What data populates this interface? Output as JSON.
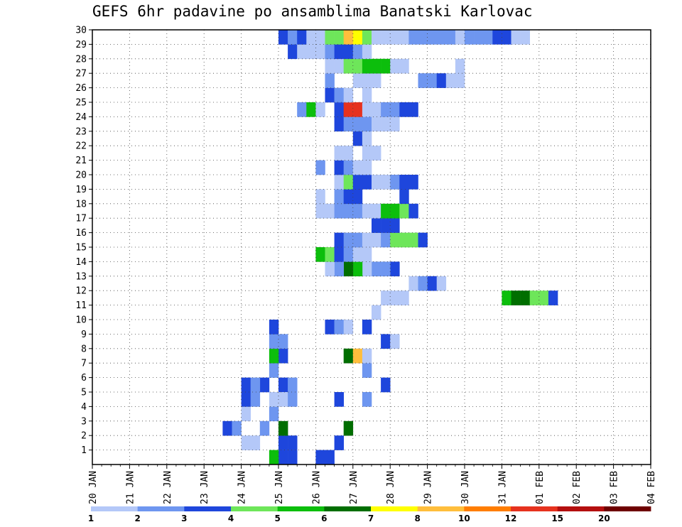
{
  "chart_data": {
    "type": "heatmap",
    "title": "GEFS 6hr padavine po ansamblima Banatski Karlovac",
    "xlabel": "",
    "ylabel": "",
    "x_tick_labels": [
      "20 JAN",
      "21 JAN",
      "22 JAN",
      "23 JAN",
      "24 JAN",
      "25 JAN",
      "26 JAN",
      "27 JAN",
      "28 JAN",
      "29 JAN",
      "30 JAN",
      "31 JAN",
      "01 FEB",
      "02 FEB",
      "03 FEB",
      "04 FEB"
    ],
    "y_tick_labels": [
      "1",
      "2",
      "3",
      "4",
      "5",
      "6",
      "7",
      "8",
      "9",
      "10",
      "11",
      "12",
      "13",
      "14",
      "15",
      "16",
      "17",
      "18",
      "19",
      "20",
      "21",
      "22",
      "23",
      "24",
      "25",
      "26",
      "27",
      "28",
      "29",
      "30"
    ],
    "time_steps_per_day": 4,
    "members_range": [
      0,
      30
    ],
    "grid": true,
    "legend_position": "bottom",
    "legend_labels": [
      "1",
      "2",
      "3",
      "4",
      "5",
      "6",
      "7",
      "8",
      "10",
      "12",
      "15",
      "20"
    ],
    "legend_colors": [
      "#b4c8f8",
      "#6e96f0",
      "#1e46dc",
      "#6ee65a",
      "#0cbe0c",
      "#006e00",
      "#ffff00",
      "#ffbe3c",
      "#ff7d00",
      "#e6321e",
      "#b40f0f",
      "#6e0000"
    ],
    "cells": [
      [
        20,
        0,
        3
      ],
      [
        20,
        1,
        3
      ],
      [
        21,
        0,
        3
      ],
      [
        19,
        0,
        5
      ],
      [
        21,
        1,
        3
      ],
      [
        20,
        2,
        6
      ],
      [
        24,
        0,
        3
      ],
      [
        25,
        0,
        3
      ],
      [
        26,
        1,
        3
      ],
      [
        19,
        3,
        2
      ],
      [
        27,
        2,
        6
      ],
      [
        31,
        5,
        3
      ],
      [
        29,
        4,
        2
      ],
      [
        26,
        4,
        3
      ],
      [
        18,
        5,
        3
      ],
      [
        20,
        5,
        3
      ],
      [
        19,
        6,
        2
      ],
      [
        29,
        6,
        2
      ],
      [
        27,
        7,
        6
      ],
      [
        28,
        7,
        8
      ],
      [
        29,
        7,
        1
      ],
      [
        31,
        8,
        3
      ],
      [
        32,
        8,
        1
      ],
      [
        20,
        7,
        3
      ],
      [
        19,
        7,
        5
      ],
      [
        20,
        8,
        2
      ],
      [
        19,
        8,
        2
      ],
      [
        19,
        9,
        3
      ],
      [
        25,
        9,
        3
      ],
      [
        26,
        9,
        2
      ],
      [
        27,
        9,
        1
      ],
      [
        29,
        9,
        3
      ],
      [
        30,
        10,
        1
      ],
      [
        31,
        11,
        1
      ],
      [
        32,
        11,
        1
      ],
      [
        33,
        11,
        1
      ],
      [
        34,
        12,
        1
      ],
      [
        35,
        12,
        2
      ],
      [
        36,
        12,
        3
      ],
      [
        37,
        12,
        1
      ],
      [
        32,
        13,
        3
      ],
      [
        31,
        13,
        2
      ],
      [
        30,
        13,
        2
      ],
      [
        29,
        13,
        1
      ],
      [
        28,
        13,
        5
      ],
      [
        27,
        13,
        6
      ],
      [
        26,
        13,
        2
      ],
      [
        25,
        13,
        1
      ],
      [
        24,
        14,
        5
      ],
      [
        25,
        14,
        4
      ],
      [
        26,
        14,
        3
      ],
      [
        27,
        14,
        2
      ],
      [
        28,
        14,
        1
      ],
      [
        29,
        14,
        1
      ],
      [
        26,
        15,
        3
      ],
      [
        27,
        15,
        2
      ],
      [
        28,
        15,
        2
      ],
      [
        29,
        15,
        1
      ],
      [
        30,
        15,
        1
      ],
      [
        31,
        15,
        2
      ],
      [
        32,
        15,
        4
      ],
      [
        33,
        15,
        4
      ],
      [
        34,
        15,
        4
      ],
      [
        35,
        15,
        3
      ],
      [
        30,
        16,
        3
      ],
      [
        31,
        16,
        3
      ],
      [
        32,
        16,
        3
      ],
      [
        24,
        17,
        1
      ],
      [
        25,
        17,
        1
      ],
      [
        26,
        17,
        2
      ],
      [
        27,
        17,
        2
      ],
      [
        28,
        17,
        2
      ],
      [
        29,
        17,
        1
      ],
      [
        30,
        17,
        1
      ],
      [
        31,
        17,
        5
      ],
      [
        32,
        17,
        5
      ],
      [
        33,
        17,
        4
      ],
      [
        34,
        17,
        3
      ],
      [
        24,
        18,
        1
      ],
      [
        26,
        18,
        2
      ],
      [
        27,
        18,
        3
      ],
      [
        28,
        18,
        3
      ],
      [
        33,
        18,
        3
      ],
      [
        26,
        19,
        1
      ],
      [
        27,
        19,
        4
      ],
      [
        28,
        19,
        3
      ],
      [
        29,
        19,
        3
      ],
      [
        30,
        19,
        1
      ],
      [
        31,
        19,
        1
      ],
      [
        32,
        19,
        2
      ],
      [
        33,
        19,
        3
      ],
      [
        34,
        19,
        3
      ],
      [
        24,
        20,
        2
      ],
      [
        26,
        20,
        3
      ],
      [
        27,
        20,
        2
      ],
      [
        28,
        20,
        1
      ],
      [
        29,
        20,
        1
      ],
      [
        26,
        21,
        1
      ],
      [
        27,
        21,
        1
      ],
      [
        29,
        21,
        1
      ],
      [
        30,
        21,
        1
      ],
      [
        28,
        22,
        3
      ],
      [
        29,
        22,
        1
      ],
      [
        26,
        23,
        3
      ],
      [
        27,
        23,
        2
      ],
      [
        28,
        23,
        2
      ],
      [
        29,
        23,
        2
      ],
      [
        30,
        23,
        1
      ],
      [
        31,
        23,
        1
      ],
      [
        32,
        23,
        1
      ],
      [
        22,
        24,
        2
      ],
      [
        23,
        24,
        5
      ],
      [
        24,
        24,
        1
      ],
      [
        26,
        24,
        3
      ],
      [
        27,
        24,
        10
      ],
      [
        28,
        24,
        10
      ],
      [
        29,
        24,
        1
      ],
      [
        30,
        24,
        1
      ],
      [
        31,
        24,
        2
      ],
      [
        32,
        24,
        2
      ],
      [
        33,
        24,
        3
      ],
      [
        34,
        24,
        3
      ],
      [
        25,
        25,
        3
      ],
      [
        26,
        25,
        2
      ],
      [
        27,
        25,
        1
      ],
      [
        29,
        25,
        1
      ],
      [
        25,
        26,
        2
      ],
      [
        28,
        26,
        1
      ],
      [
        29,
        26,
        1
      ],
      [
        30,
        26,
        1
      ],
      [
        25,
        27,
        1
      ],
      [
        26,
        27,
        1
      ],
      [
        27,
        27,
        4
      ],
      [
        28,
        27,
        4
      ],
      [
        29,
        27,
        5
      ],
      [
        30,
        27,
        5
      ],
      [
        31,
        27,
        5
      ],
      [
        32,
        27,
        1
      ],
      [
        33,
        27,
        1
      ],
      [
        21,
        28,
        3
      ],
      [
        22,
        28,
        1
      ],
      [
        23,
        28,
        1
      ],
      [
        24,
        28,
        1
      ],
      [
        25,
        28,
        2
      ],
      [
        26,
        28,
        3
      ],
      [
        27,
        28,
        3
      ],
      [
        28,
        28,
        2
      ],
      [
        29,
        28,
        1
      ],
      [
        20,
        29,
        3
      ],
      [
        21,
        29,
        2
      ],
      [
        22,
        29,
        3
      ],
      [
        23,
        29,
        1
      ],
      [
        24,
        29,
        1
      ],
      [
        25,
        29,
        4
      ],
      [
        26,
        29,
        4
      ],
      [
        27,
        29,
        8
      ],
      [
        28,
        29,
        7
      ],
      [
        29,
        29,
        4
      ],
      [
        30,
        29,
        1
      ],
      [
        31,
        29,
        1
      ],
      [
        32,
        29,
        1
      ],
      [
        33,
        29,
        1
      ],
      [
        34,
        29,
        2
      ],
      [
        35,
        29,
        2
      ],
      [
        36,
        29,
        2
      ],
      [
        37,
        29,
        2
      ],
      [
        38,
        29,
        2
      ],
      [
        39,
        29,
        1
      ],
      [
        40,
        29,
        2
      ],
      [
        41,
        29,
        2
      ],
      [
        42,
        29,
        2
      ],
      [
        43,
        29,
        3
      ],
      [
        44,
        29,
        3
      ],
      [
        45,
        29,
        1
      ],
      [
        46,
        29,
        1
      ],
      [
        16,
        1,
        1
      ],
      [
        17,
        1,
        1
      ],
      [
        18,
        2,
        2
      ],
      [
        19,
        4,
        1
      ],
      [
        20,
        4,
        1
      ],
      [
        21,
        4,
        2
      ],
      [
        21,
        5,
        2
      ],
      [
        14,
        2,
        3
      ],
      [
        15,
        2,
        2
      ],
      [
        16,
        3,
        1
      ],
      [
        16,
        4,
        3
      ],
      [
        17,
        4,
        2
      ],
      [
        16,
        5,
        3
      ],
      [
        17,
        5,
        2
      ],
      [
        35,
        26,
        2
      ],
      [
        36,
        26,
        2
      ],
      [
        37,
        26,
        3
      ],
      [
        38,
        26,
        1
      ],
      [
        39,
        26,
        1
      ],
      [
        39,
        27,
        1
      ],
      [
        44,
        11,
        5
      ],
      [
        45,
        11,
        6
      ],
      [
        46,
        11,
        6
      ],
      [
        47,
        11,
        4
      ],
      [
        48,
        11,
        4
      ],
      [
        49,
        11,
        3
      ]
    ]
  }
}
